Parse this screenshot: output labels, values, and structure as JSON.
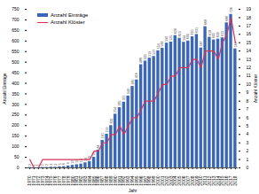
{
  "chart_data": {
    "type": "bar",
    "categories": [
      "1970",
      "1971",
      "1972",
      "1973",
      "1974",
      "1975",
      "1976",
      "1977",
      "1978",
      "1979",
      "1980",
      "1981",
      "1982",
      "1983",
      "1984",
      "1985",
      "1986",
      "1987",
      "1988",
      "1989",
      "1990",
      "1991",
      "1992",
      "1993",
      "1994",
      "1995",
      "1996",
      "1997",
      "1998",
      "1999",
      "2000",
      "2001",
      "2002",
      "2003",
      "2004",
      "2005",
      "2006",
      "2007",
      "2008",
      "2009",
      "2010",
      "2011",
      "2012",
      "2013",
      "2014",
      "2015",
      "2016",
      "2017",
      "2018"
    ],
    "series": [
      {
        "name": "Anzahl Einträge",
        "type": "bar",
        "color": "#3a66b8",
        "data_labels": true,
        "values": [
          2,
          1,
          1,
          2,
          2,
          3,
          3,
          5,
          6,
          9,
          12,
          15,
          18,
          24,
          30,
          50,
          84,
          130,
          159,
          200,
          254,
          285,
          311,
          340,
          385,
          416,
          488,
          505,
          519,
          527,
          554,
          566,
          590,
          595,
          626,
          613,
          594,
          600,
          620,
          631,
          567,
          668,
          618,
          605,
          609,
          615,
          686,
          726,
          563
        ]
      },
      {
        "name": "Anzahl Klöster",
        "type": "line",
        "color": "#d6325a",
        "axis": "y2",
        "values": [
          1,
          0,
          0,
          1,
          1,
          1,
          1,
          1,
          1,
          1,
          1,
          1,
          1,
          1,
          1,
          2,
          2,
          3,
          3,
          4,
          4,
          5,
          4,
          5,
          6,
          6,
          7,
          8,
          8,
          8,
          9,
          10,
          10,
          11,
          11,
          12,
          12,
          12,
          13,
          13,
          12,
          14,
          14,
          14,
          13,
          15,
          16,
          18,
          15
        ]
      }
    ],
    "xlabel": "Jahr",
    "ylabel": "Anzahl Einträge",
    "y2label": "Anzahl Klöster",
    "ylim": [
      0,
      750
    ],
    "yticks": [
      0,
      50,
      100,
      150,
      200,
      250,
      300,
      350,
      400,
      450,
      500,
      550,
      600,
      650,
      700,
      750
    ],
    "y2lim": [
      0,
      19
    ],
    "y2ticks": [
      0,
      1,
      2,
      3,
      4,
      5,
      6,
      7,
      8,
      9,
      10,
      11,
      12,
      13,
      14,
      15,
      16,
      17,
      18,
      19
    ],
    "grid": false,
    "legend": "top-left"
  }
}
